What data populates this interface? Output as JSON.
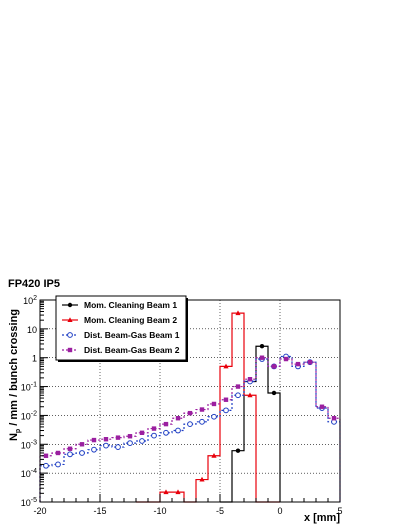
{
  "chart_data": {
    "type": "line",
    "step": true,
    "title": "FP420 IP5",
    "xlabel": "x [mm]",
    "ylabel_main": "N",
    "ylabel_sub": "p",
    "ylabel_rest": " / mm / bunch crossing",
    "xlim": [
      -20,
      5
    ],
    "ylim": [
      1e-05,
      100
    ],
    "yscale": "log",
    "grid": true,
    "legend_position": "top-left",
    "x_ticks": [
      -20,
      -15,
      -10,
      -5,
      0,
      5
    ],
    "x_tick_labels": [
      "-20",
      "-15",
      "-10",
      "-5",
      "0",
      "5"
    ],
    "y_ticks": [
      1e-05,
      0.0001,
      0.001,
      0.01,
      0.1,
      1,
      10,
      100
    ],
    "y_tick_labels": [
      {
        "base": "10",
        "exp": "-5"
      },
      {
        "base": "10",
        "exp": "-4"
      },
      {
        "base": "10",
        "exp": "-3"
      },
      {
        "base": "10",
        "exp": "-2"
      },
      {
        "base": "10",
        "exp": "-1"
      },
      {
        "base": "1",
        "exp": ""
      },
      {
        "base": "10",
        "exp": ""
      },
      {
        "base": "10",
        "exp": "2"
      }
    ],
    "series": [
      {
        "name": "Mom. Cleaning Beam 1",
        "color": "#000000",
        "dash": "",
        "marker": "circle-filled",
        "x": [
          -4.5,
          -3.5,
          -2.5,
          -1.5,
          -0.5
        ],
        "y": [
          1e-05,
          0.0006,
          0.15,
          2.5,
          0.06
        ]
      },
      {
        "name": "Mom. Cleaning Beam 2",
        "color": "#e8000b",
        "dash": "",
        "marker": "triangle",
        "x": [
          -11.5,
          -10.5,
          -9.5,
          -8.5,
          -7.5,
          -6.5,
          -5.5,
          -4.5,
          -3.5,
          -2.5,
          -1.5,
          -0.5
        ],
        "y": [
          1e-05,
          1e-05,
          2.2e-05,
          2.2e-05,
          1e-05,
          6e-05,
          0.0004,
          0.5,
          35,
          0.05,
          1e-05,
          1e-05
        ]
      },
      {
        "name": "Dist. Beam-Gas Beam 1",
        "color": "#1f3fc4",
        "dash": "2,2",
        "marker": "circle-open",
        "x": [
          -19.5,
          -18.5,
          -17.5,
          -16.5,
          -15.5,
          -14.5,
          -13.5,
          -12.5,
          -11.5,
          -10.5,
          -9.5,
          -8.5,
          -7.5,
          -6.5,
          -5.5,
          -4.5,
          -3.5,
          -2.5,
          -1.5,
          -0.5,
          0.5,
          1.5,
          2.5,
          3.5,
          4.5
        ],
        "y": [
          0.00018,
          0.0002,
          0.00045,
          0.0005,
          0.00065,
          0.0009,
          0.0008,
          0.0011,
          0.0013,
          0.002,
          0.0025,
          0.003,
          0.005,
          0.006,
          0.009,
          0.015,
          0.05,
          0.15,
          0.9,
          0.5,
          1.1,
          0.5,
          0.7,
          0.018,
          0.006
        ]
      },
      {
        "name": "Dist. Beam-Gas Beam 2",
        "color": "#9b1fa0",
        "dash": "2,2",
        "marker": "square",
        "x": [
          -19.5,
          -18.5,
          -17.5,
          -16.5,
          -15.5,
          -14.5,
          -13.5,
          -12.5,
          -11.5,
          -10.5,
          -9.5,
          -8.5,
          -7.5,
          -6.5,
          -5.5,
          -4.5,
          -3.5,
          -2.5,
          -1.5,
          -0.5,
          0.5,
          1.5,
          2.5,
          3.5,
          4.5
        ],
        "y": [
          0.0004,
          0.0005,
          0.0007,
          0.001,
          0.0014,
          0.0015,
          0.0017,
          0.0019,
          0.0025,
          0.0035,
          0.005,
          0.008,
          0.012,
          0.016,
          0.025,
          0.035,
          0.1,
          0.18,
          1.0,
          0.5,
          0.9,
          0.6,
          0.7,
          0.02,
          0.008
        ]
      }
    ]
  }
}
